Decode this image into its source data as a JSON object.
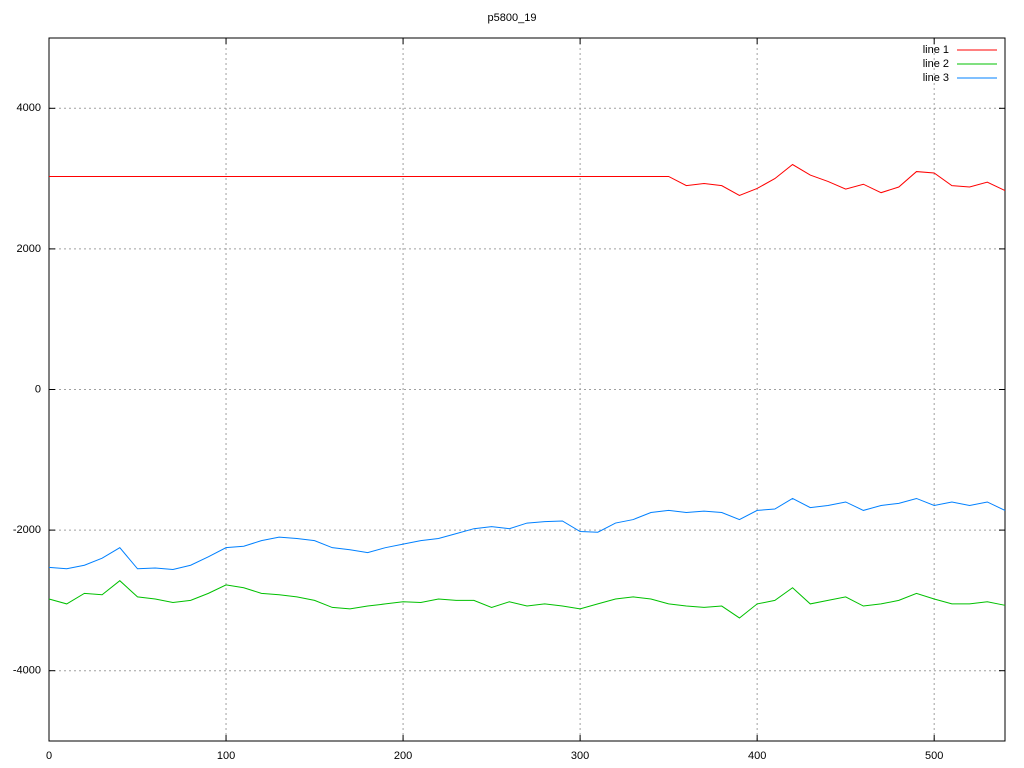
{
  "chart_data": {
    "type": "line",
    "title": "p5800_19",
    "x": [
      0,
      10,
      20,
      30,
      40,
      50,
      60,
      70,
      80,
      90,
      100,
      110,
      120,
      130,
      140,
      150,
      160,
      170,
      180,
      190,
      200,
      210,
      220,
      230,
      240,
      250,
      260,
      270,
      280,
      290,
      300,
      310,
      320,
      330,
      340,
      350,
      360,
      370,
      380,
      390,
      400,
      410,
      420,
      430,
      440,
      450,
      460,
      470,
      480,
      490,
      500,
      510,
      520,
      530,
      540
    ],
    "series": [
      {
        "name": "line 1",
        "color": "#ff0000",
        "values": [
          3030,
          3030,
          3030,
          3030,
          3030,
          3030,
          3030,
          3030,
          3030,
          3030,
          3030,
          3030,
          3030,
          3030,
          3030,
          3030,
          3030,
          3030,
          3030,
          3030,
          3030,
          3030,
          3030,
          3030,
          3030,
          3030,
          3030,
          3030,
          3030,
          3030,
          3030,
          3030,
          3030,
          3030,
          3030,
          3030,
          2900,
          2930,
          2900,
          2760,
          2860,
          3000,
          3200,
          3050,
          2960,
          2850,
          2920,
          2800,
          2880,
          3100,
          3080,
          2900,
          2880,
          2950,
          2830
        ]
      },
      {
        "name": "line 2",
        "color": "#00c000",
        "values": [
          -2980,
          -3050,
          -2900,
          -2920,
          -2720,
          -2950,
          -2980,
          -3030,
          -3000,
          -2900,
          -2780,
          -2820,
          -2900,
          -2920,
          -2950,
          -3000,
          -3100,
          -3120,
          -3080,
          -3050,
          -3020,
          -3030,
          -2980,
          -3000,
          -3000,
          -3100,
          -3020,
          -3080,
          -3050,
          -3080,
          -3120,
          -3050,
          -2980,
          -2950,
          -2980,
          -3050,
          -3080,
          -3100,
          -3080,
          -3250,
          -3050,
          -3000,
          -2820,
          -3050,
          -3000,
          -2950,
          -3080,
          -3050,
          -3000,
          -2900,
          -2980,
          -3050,
          -3050,
          -3020,
          -3070
        ]
      },
      {
        "name": "line 3",
        "color": "#0080ff",
        "values": [
          -2530,
          -2550,
          -2500,
          -2400,
          -2250,
          -2550,
          -2540,
          -2560,
          -2500,
          -2380,
          -2250,
          -2230,
          -2150,
          -2100,
          -2120,
          -2150,
          -2250,
          -2280,
          -2320,
          -2250,
          -2200,
          -2150,
          -2120,
          -2050,
          -1980,
          -1950,
          -1980,
          -1900,
          -1880,
          -1870,
          -2020,
          -2030,
          -1900,
          -1850,
          -1750,
          -1720,
          -1750,
          -1730,
          -1750,
          -1850,
          -1720,
          -1700,
          -1550,
          -1680,
          -1650,
          -1600,
          -1720,
          -1650,
          -1620,
          -1550,
          -1650,
          -1600,
          -1650,
          -1600,
          -1720
        ]
      }
    ],
    "xlim": [
      0,
      540
    ],
    "ylim": [
      -5000,
      5000
    ],
    "xticks": [
      0,
      100,
      200,
      300,
      400,
      500
    ],
    "yticks": [
      -4000,
      -2000,
      0,
      2000,
      4000
    ],
    "grid": true,
    "legend": "top-right"
  }
}
